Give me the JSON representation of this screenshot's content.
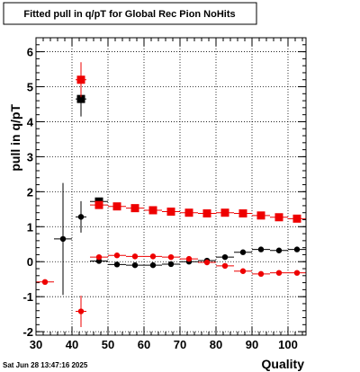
{
  "chart_data": {
    "type": "scatter",
    "title": "Fitted pull in q/pT for Global Rec Pion NoHits",
    "xlabel": "Quality",
    "ylabel": "pull in q/pT",
    "timestamp": "Sat Jun 28 13:47:16 2025",
    "xlim": [
      30,
      105
    ],
    "ylim": [
      -2.1,
      6.4
    ],
    "x_ticks": [
      30,
      40,
      50,
      60,
      70,
      80,
      90,
      100
    ],
    "y_ticks": [
      -2,
      -1,
      0,
      1,
      2,
      3,
      4,
      5,
      6
    ],
    "grid": true,
    "series": [
      {
        "marker": "square",
        "color": "#000000",
        "points": [
          {
            "x": 42.5,
            "y": 4.65,
            "yerr": 0.5,
            "xerr": 1.5
          },
          {
            "x": 47.5,
            "y": 1.72,
            "yerr": 0.1,
            "xerr": 2.5
          }
        ]
      },
      {
        "marker": "square",
        "color": "#ee0000",
        "points": [
          {
            "x": 42.5,
            "y": 5.2,
            "yerr": 0.5,
            "xerr": 1.5
          },
          {
            "x": 47.5,
            "y": 1.62,
            "yerr": 0.05,
            "xerr": 2.5
          },
          {
            "x": 52.5,
            "y": 1.58,
            "yerr": 0.05,
            "xerr": 2.5
          },
          {
            "x": 57.5,
            "y": 1.53,
            "yerr": 0.05,
            "xerr": 2.5
          },
          {
            "x": 62.5,
            "y": 1.47,
            "yerr": 0.05,
            "xerr": 2.5
          },
          {
            "x": 67.5,
            "y": 1.43,
            "yerr": 0.05,
            "xerr": 2.5
          },
          {
            "x": 72.5,
            "y": 1.4,
            "yerr": 0.05,
            "xerr": 2.5
          },
          {
            "x": 77.5,
            "y": 1.38,
            "yerr": 0.05,
            "xerr": 2.5
          },
          {
            "x": 82.5,
            "y": 1.4,
            "yerr": 0.05,
            "xerr": 2.5
          },
          {
            "x": 87.5,
            "y": 1.38,
            "yerr": 0.05,
            "xerr": 2.5
          },
          {
            "x": 92.5,
            "y": 1.32,
            "yerr": 0.05,
            "xerr": 2.5
          },
          {
            "x": 97.5,
            "y": 1.27,
            "yerr": 0.05,
            "xerr": 2.5
          },
          {
            "x": 102.5,
            "y": 1.23,
            "yerr": 0.05,
            "xerr": 2.5
          }
        ]
      },
      {
        "marker": "circle",
        "color": "#000000",
        "points": [
          {
            "x": 37.5,
            "y": 0.65,
            "yerr": 1.6,
            "xerr": 2.5
          },
          {
            "x": 42.5,
            "y": 1.28,
            "yerr": 0.45,
            "xerr": 1.5
          },
          {
            "x": 47.5,
            "y": 0.02,
            "yerr": 0.05,
            "xerr": 2.5
          },
          {
            "x": 52.5,
            "y": -0.08,
            "yerr": 0.05,
            "xerr": 2.5
          },
          {
            "x": 57.5,
            "y": -0.1,
            "yerr": 0.05,
            "xerr": 2.5
          },
          {
            "x": 62.5,
            "y": -0.1,
            "yerr": 0.05,
            "xerr": 2.5
          },
          {
            "x": 67.5,
            "y": -0.07,
            "yerr": 0.05,
            "xerr": 2.5
          },
          {
            "x": 72.5,
            "y": 0.0,
            "yerr": 0.05,
            "xerr": 2.5
          },
          {
            "x": 77.5,
            "y": 0.03,
            "yerr": 0.05,
            "xerr": 2.5
          },
          {
            "x": 82.5,
            "y": 0.13,
            "yerr": 0.05,
            "xerr": 2.5
          },
          {
            "x": 87.5,
            "y": 0.27,
            "yerr": 0.05,
            "xerr": 2.5
          },
          {
            "x": 92.5,
            "y": 0.35,
            "yerr": 0.05,
            "xerr": 2.5
          },
          {
            "x": 97.5,
            "y": 0.32,
            "yerr": 0.05,
            "xerr": 2.5
          },
          {
            "x": 102.5,
            "y": 0.35,
            "yerr": 0.05,
            "xerr": 2.5
          }
        ]
      },
      {
        "marker": "circle",
        "color": "#ee0000",
        "points": [
          {
            "x": 32.5,
            "y": -0.58,
            "yerr": 0.03,
            "xerr": 2.5
          },
          {
            "x": 42.5,
            "y": -1.42,
            "yerr": 0.45,
            "xerr": 1.5
          },
          {
            "x": 47.5,
            "y": 0.13,
            "yerr": 0.05,
            "xerr": 2.5
          },
          {
            "x": 52.5,
            "y": 0.18,
            "yerr": 0.05,
            "xerr": 2.5
          },
          {
            "x": 57.5,
            "y": 0.15,
            "yerr": 0.05,
            "xerr": 2.5
          },
          {
            "x": 62.5,
            "y": 0.15,
            "yerr": 0.05,
            "xerr": 2.5
          },
          {
            "x": 67.5,
            "y": 0.13,
            "yerr": 0.05,
            "xerr": 2.5
          },
          {
            "x": 72.5,
            "y": 0.08,
            "yerr": 0.05,
            "xerr": 2.5
          },
          {
            "x": 77.5,
            "y": -0.02,
            "yerr": 0.05,
            "xerr": 2.5
          },
          {
            "x": 82.5,
            "y": -0.12,
            "yerr": 0.05,
            "xerr": 2.5
          },
          {
            "x": 87.5,
            "y": -0.27,
            "yerr": 0.05,
            "xerr": 2.5
          },
          {
            "x": 92.5,
            "y": -0.35,
            "yerr": 0.05,
            "xerr": 2.5
          },
          {
            "x": 97.5,
            "y": -0.32,
            "yerr": 0.05,
            "xerr": 2.5
          },
          {
            "x": 102.5,
            "y": -0.32,
            "yerr": 0.05,
            "xerr": 2.5
          }
        ]
      }
    ]
  }
}
